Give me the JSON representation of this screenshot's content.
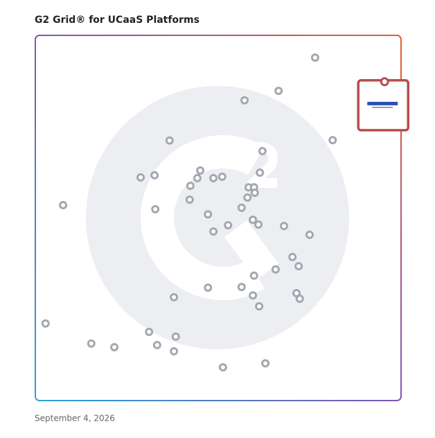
{
  "chart_data": {
    "type": "scatter",
    "title": "G2 Grid® for UCaaS Platforms",
    "footnote": "September 4, 2026",
    "xlim": [
      0,
      100
    ],
    "ylim": [
      0,
      100
    ],
    "series": [
      {
        "color": "#a3a7b0",
        "x": [
          76.5,
          66.5,
          57.2,
          81.3,
          36.7,
          62.1,
          61.4,
          45.1,
          28.8,
          32.6,
          44.3,
          48.7,
          51.1,
          42.4,
          58.3,
          59.8,
          60.0,
          58.0,
          42.2,
          7.6,
          32.8,
          56.4,
          47.2,
          59.5,
          61.0,
          52.7,
          68.0,
          48.7,
          75.0,
          70.3,
          72.0,
          65.7,
          59.8,
          47.2,
          56.4,
          59.5,
          71.4,
          72.3,
          37.9,
          61.2,
          2.8,
          31.1,
          38.4,
          15.3,
          21.6,
          33.3,
          37.9,
          51.3,
          62.9
        ],
        "values": [
          93.9,
          84.8,
          82.2,
          71.3,
          71.2,
          68.3,
          62.4,
          63.0,
          61.1,
          61.7,
          60.9,
          60.9,
          61.3,
          58.8,
          58.4,
          58.4,
          56.9,
          55.6,
          55.0,
          53.5,
          52.4,
          52.8,
          51.0,
          49.5,
          48.2,
          48.0,
          47.8,
          46.3,
          45.4,
          39.3,
          36.8,
          35.9,
          34.2,
          30.9,
          31.1,
          28.8,
          29.4,
          27.9,
          28.3,
          25.8,
          21.1,
          18.8,
          17.5,
          15.6,
          14.6,
          15.2,
          13.5,
          9.1,
          10.2
        ]
      },
      {
        "color": "#b84b4b",
        "x": [
          95.5
        ],
        "values": [
          87.3
        ]
      }
    ]
  }
}
